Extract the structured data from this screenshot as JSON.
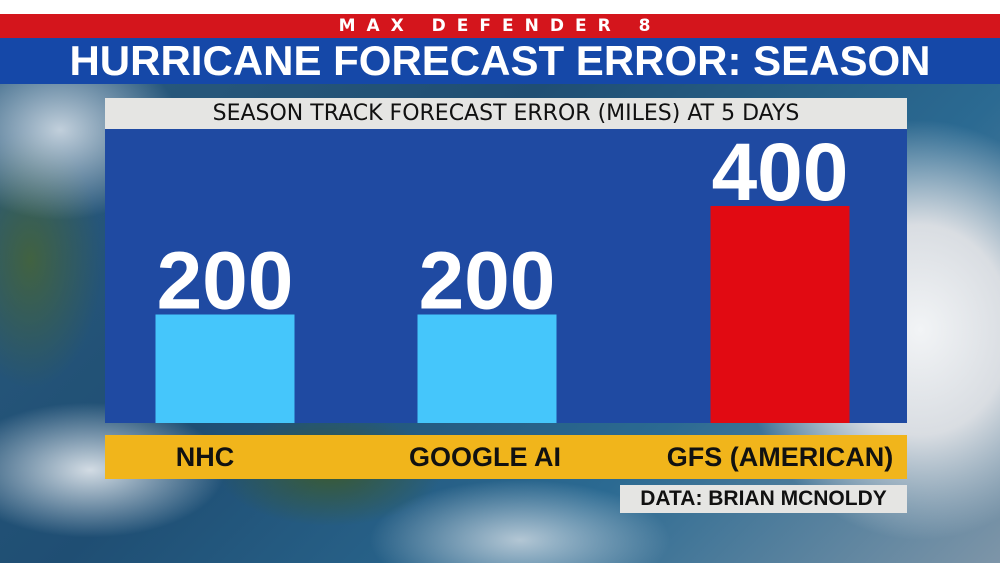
{
  "brand": "MAX DEFENDER 8",
  "headline": "HURRICANE FORECAST ERROR: SEASON",
  "source": "DATA: BRIAN MCNOLDY",
  "colors": {
    "brand_red": "#d4151c",
    "title_blue": "#1548a8",
    "panel_blue": "#1f4aa2",
    "bar_light_blue": "#45c6fb",
    "bar_red": "#e10a12",
    "label_band_gold": "#f1b51b"
  },
  "chart_data": {
    "type": "bar",
    "title": "SEASON TRACK FORECAST ERROR (MILES) AT 5 DAYS",
    "categories": [
      "NHC",
      "GOOGLE AI",
      "GFS (AMERICAN)"
    ],
    "values": [
      200,
      200,
      400
    ],
    "data_labels": [
      "200",
      "200",
      "400"
    ],
    "bar_colors": [
      "#45c6fb",
      "#45c6fb",
      "#e10a12"
    ],
    "ylim": [
      0,
      400
    ],
    "grid": false,
    "legend": "none"
  }
}
